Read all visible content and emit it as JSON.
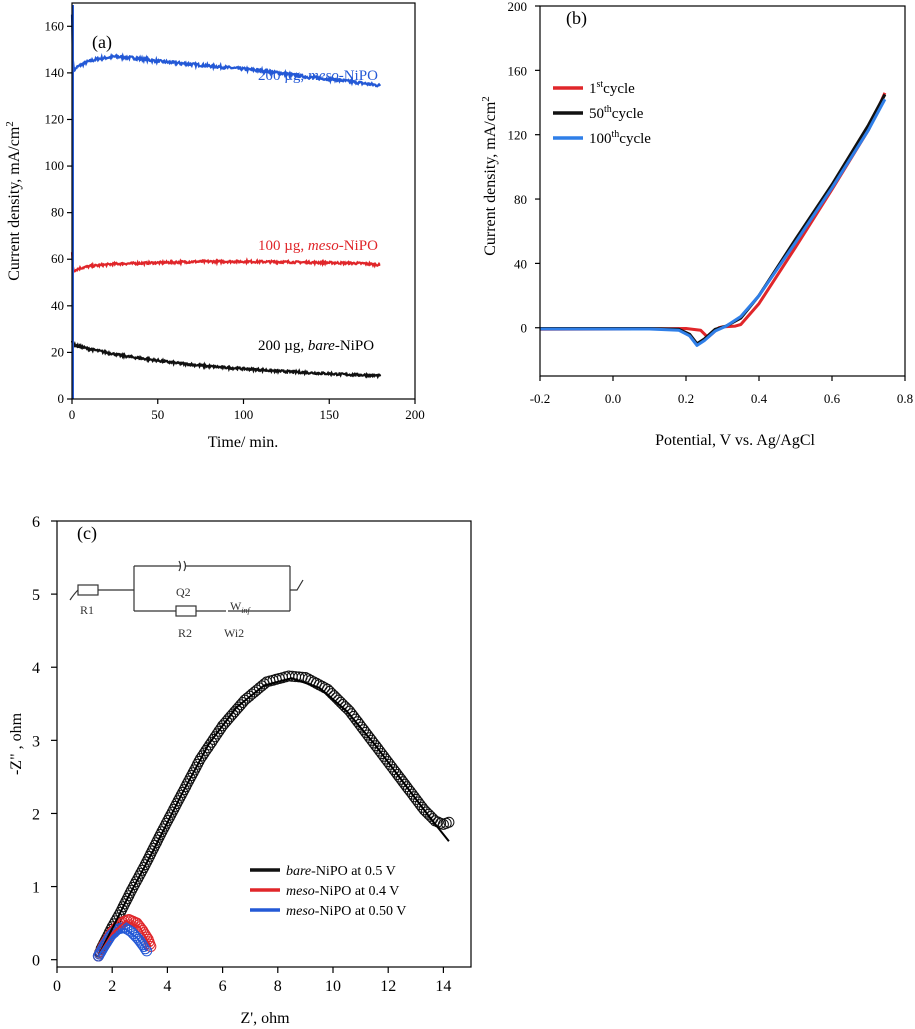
{
  "colors": {
    "black": "#111111",
    "red": "#e0262a",
    "blue": "#2459d6",
    "blue_b": "#2f7fe8"
  },
  "chart_data": [
    {
      "panel": "(a)",
      "type": "line",
      "xlabel": "Time/ min.",
      "ylabel_main": "Current density, mA/cm",
      "ylabel_sup": "2",
      "xlim": [
        0,
        200
      ],
      "ylim": [
        0,
        170
      ],
      "xticks": [
        0,
        50,
        100,
        150,
        200
      ],
      "yticks": [
        0,
        20,
        40,
        60,
        80,
        100,
        120,
        140,
        160
      ],
      "series": [
        {
          "name": "200 µg, meso-NiPO",
          "label_prefix": "200 µg, ",
          "label_italic": "meso",
          "label_suffix": "-NiPO",
          "color": "#2459d6",
          "points": [
            [
              0,
              165
            ],
            [
              0.5,
              146
            ],
            [
              1,
              141
            ],
            [
              3,
              142.5
            ],
            [
              8,
              144.5
            ],
            [
              15,
              146
            ],
            [
              25,
              147
            ],
            [
              35,
              146.5
            ],
            [
              50,
              145
            ],
            [
              65,
              144
            ],
            [
              80,
              143
            ],
            [
              95,
              142
            ],
            [
              110,
              141
            ],
            [
              125,
              139.5
            ],
            [
              140,
              138
            ],
            [
              155,
              137
            ],
            [
              170,
              135.5
            ],
            [
              180,
              134.5
            ]
          ]
        },
        {
          "name": "100 µg, meso-NiPO",
          "label_prefix": "100 µg, ",
          "label_italic": "meso",
          "label_suffix": "-NiPO",
          "color": "#e0262a",
          "points": [
            [
              0,
              63
            ],
            [
              0.5,
              57
            ],
            [
              1,
              55
            ],
            [
              4,
              56
            ],
            [
              10,
              57
            ],
            [
              25,
              58
            ],
            [
              50,
              58.5
            ],
            [
              75,
              59
            ],
            [
              100,
              59
            ],
            [
              125,
              58.8
            ],
            [
              150,
              58.5
            ],
            [
              170,
              58.2
            ],
            [
              180,
              57.5
            ]
          ]
        },
        {
          "name": "200 µg, bare-NiPO",
          "label_prefix": "200 µg, ",
          "label_italic": "bare",
          "label_suffix": "-NiPO",
          "color": "#111111",
          "points": [
            [
              0,
              25
            ],
            [
              0.5,
              23.5
            ],
            [
              2,
              23
            ],
            [
              10,
              21.5
            ],
            [
              20,
              20
            ],
            [
              30,
              18.5
            ],
            [
              45,
              17
            ],
            [
              60,
              15.5
            ],
            [
              80,
              14
            ],
            [
              100,
              13
            ],
            [
              120,
              12
            ],
            [
              140,
              11.2
            ],
            [
              160,
              10.5
            ],
            [
              180,
              10
            ]
          ]
        }
      ]
    },
    {
      "panel": "(b)",
      "type": "line",
      "xlabel": "Potential, V vs. Ag/AgCl",
      "ylabel_main": "Current density, mA/cm",
      "ylabel_sup": "2",
      "xlim": [
        -0.2,
        0.8
      ],
      "ylim": [
        -30,
        200
      ],
      "xticks": [
        -0.2,
        0.0,
        0.2,
        0.4,
        0.6,
        0.8
      ],
      "xtick_labels": [
        "-0.2",
        "0.0",
        "0.2",
        "0.4",
        "0.6",
        "0.8"
      ],
      "yticks": [
        0,
        40,
        80,
        120,
        160,
        200
      ],
      "series": [
        {
          "name": "1st cycle",
          "label_num": "1",
          "label_sup": "st",
          "label_text": "cycle",
          "color": "#e0262a",
          "points": [
            [
              -0.2,
              -1
            ],
            [
              0.1,
              -0.7
            ],
            [
              0.2,
              -0.5
            ],
            [
              0.24,
              -1.5
            ],
            [
              0.26,
              -6
            ],
            [
              0.27,
              -4
            ],
            [
              0.29,
              0
            ],
            [
              0.3,
              0.5
            ],
            [
              0.335,
              1
            ],
            [
              0.35,
              2
            ],
            [
              0.4,
              15
            ],
            [
              0.5,
              50
            ],
            [
              0.6,
              86
            ],
            [
              0.7,
              123
            ],
            [
              0.745,
              146
            ]
          ]
        },
        {
          "name": "50th cycle",
          "label_num": "50",
          "label_sup": "th",
          "label_text": "cycle",
          "color": "#111111",
          "points": [
            [
              -0.2,
              -0.5
            ],
            [
              0.1,
              -0.5
            ],
            [
              0.18,
              -1
            ],
            [
              0.21,
              -4
            ],
            [
              0.23,
              -10
            ],
            [
              0.25,
              -7
            ],
            [
              0.28,
              -1
            ],
            [
              0.31,
              1
            ],
            [
              0.35,
              6
            ],
            [
              0.4,
              20
            ],
            [
              0.5,
              55
            ],
            [
              0.6,
              89
            ],
            [
              0.7,
              126
            ],
            [
              0.745,
              145
            ]
          ]
        },
        {
          "name": "100th cycle",
          "label_num": "100",
          "label_sup": "th",
          "label_text": "cycle",
          "color": "#2f7fe8",
          "points": [
            [
              -0.2,
              -0.8
            ],
            [
              0.1,
              -0.8
            ],
            [
              0.18,
              -1.5
            ],
            [
              0.21,
              -5
            ],
            [
              0.23,
              -11
            ],
            [
              0.25,
              -8
            ],
            [
              0.28,
              -2
            ],
            [
              0.31,
              1
            ],
            [
              0.35,
              7
            ],
            [
              0.4,
              20
            ],
            [
              0.5,
              53
            ],
            [
              0.6,
              87
            ],
            [
              0.7,
              123
            ],
            [
              0.745,
              142
            ]
          ]
        }
      ]
    },
    {
      "panel": "(c)",
      "type": "scatter",
      "xlabel": "Z', ohm",
      "ylabel": "-Z\" , ohm",
      "xlim": [
        0,
        15
      ],
      "ylim": [
        -0.1,
        6
      ],
      "xticks": [
        0,
        2,
        4,
        6,
        8,
        10,
        12,
        14
      ],
      "yticks": [
        0,
        1,
        2,
        3,
        4,
        5,
        6
      ],
      "series": [
        {
          "name": "bare-NiPO at 0.5 V",
          "label_italic": "bare",
          "label_suffix": "-NiPO at 0.5 V",
          "color": "#111111",
          "points": [
            [
              1.5,
              0.05
            ],
            [
              1.6,
              0.15
            ],
            [
              1.8,
              0.3
            ],
            [
              2.0,
              0.45
            ],
            [
              2.3,
              0.65
            ],
            [
              2.7,
              0.95
            ],
            [
              3.2,
              1.3
            ],
            [
              3.8,
              1.75
            ],
            [
              4.5,
              2.25
            ],
            [
              5.2,
              2.75
            ],
            [
              6.0,
              3.2
            ],
            [
              6.8,
              3.55
            ],
            [
              7.6,
              3.8
            ],
            [
              8.4,
              3.88
            ],
            [
              9.0,
              3.86
            ],
            [
              9.8,
              3.7
            ],
            [
              10.6,
              3.4
            ],
            [
              11.4,
              3.0
            ],
            [
              12.2,
              2.6
            ],
            [
              12.8,
              2.3
            ],
            [
              13.3,
              2.05
            ],
            [
              13.7,
              1.9
            ],
            [
              14.0,
              1.85
            ],
            [
              14.2,
              1.88
            ]
          ],
          "fit": [
            [
              1.5,
              0.05
            ],
            [
              2.5,
              0.8
            ],
            [
              3.5,
              1.5
            ],
            [
              4.5,
              2.25
            ],
            [
              5.5,
              2.95
            ],
            [
              6.5,
              3.45
            ],
            [
              7.5,
              3.75
            ],
            [
              8.5,
              3.85
            ],
            [
              9.5,
              3.72
            ],
            [
              10.5,
              3.4
            ],
            [
              11.5,
              2.95
            ],
            [
              12.5,
              2.45
            ],
            [
              13.5,
              1.95
            ],
            [
              14.2,
              1.62
            ]
          ]
        },
        {
          "name": "meso-NiPO at 0.4 V",
          "label_italic": "meso",
          "label_suffix": "-NiPO at 0.4 V",
          "color": "#e0262a",
          "points": [
            [
              1.5,
              0.05
            ],
            [
              1.7,
              0.2
            ],
            [
              2.0,
              0.38
            ],
            [
              2.3,
              0.5
            ],
            [
              2.6,
              0.55
            ],
            [
              2.9,
              0.5
            ],
            [
              3.1,
              0.4
            ],
            [
              3.3,
              0.28
            ],
            [
              3.4,
              0.18
            ]
          ],
          "fit": [
            [
              1.5,
              0.05
            ],
            [
              2.0,
              0.36
            ],
            [
              2.5,
              0.53
            ],
            [
              3.0,
              0.44
            ],
            [
              3.4,
              0.18
            ]
          ]
        },
        {
          "name": "meso-NiPO at 0.50 V",
          "label_italic": "meso",
          "label_suffix": "-NiPO at 0.50 V",
          "color": "#2459d6",
          "points": [
            [
              1.5,
              0.05
            ],
            [
              1.7,
              0.18
            ],
            [
              1.95,
              0.33
            ],
            [
              2.2,
              0.42
            ],
            [
              2.45,
              0.44
            ],
            [
              2.7,
              0.38
            ],
            [
              2.95,
              0.28
            ],
            [
              3.15,
              0.18
            ],
            [
              3.25,
              0.12
            ]
          ],
          "fit": [
            [
              1.5,
              0.05
            ],
            [
              2.0,
              0.32
            ],
            [
              2.45,
              0.43
            ],
            [
              2.9,
              0.3
            ],
            [
              3.25,
              0.12
            ]
          ]
        }
      ],
      "inset": {
        "labels": [
          "Q2",
          "R1",
          "R2",
          "W",
          "inf",
          "Wi2"
        ]
      }
    }
  ]
}
